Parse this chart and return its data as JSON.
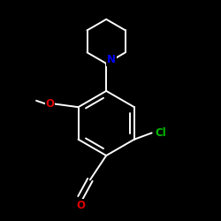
{
  "background_color": "#000000",
  "atom_colors": {
    "N": "#0000ee",
    "O": "#dd0000",
    "Cl": "#00bb00"
  },
  "bond_color": "#ffffff",
  "bond_width": 1.4,
  "figsize": [
    2.5,
    2.5
  ],
  "dpi": 100,
  "xlim": [
    -1.1,
    1.3
  ],
  "ylim": [
    -1.35,
    1.25
  ]
}
